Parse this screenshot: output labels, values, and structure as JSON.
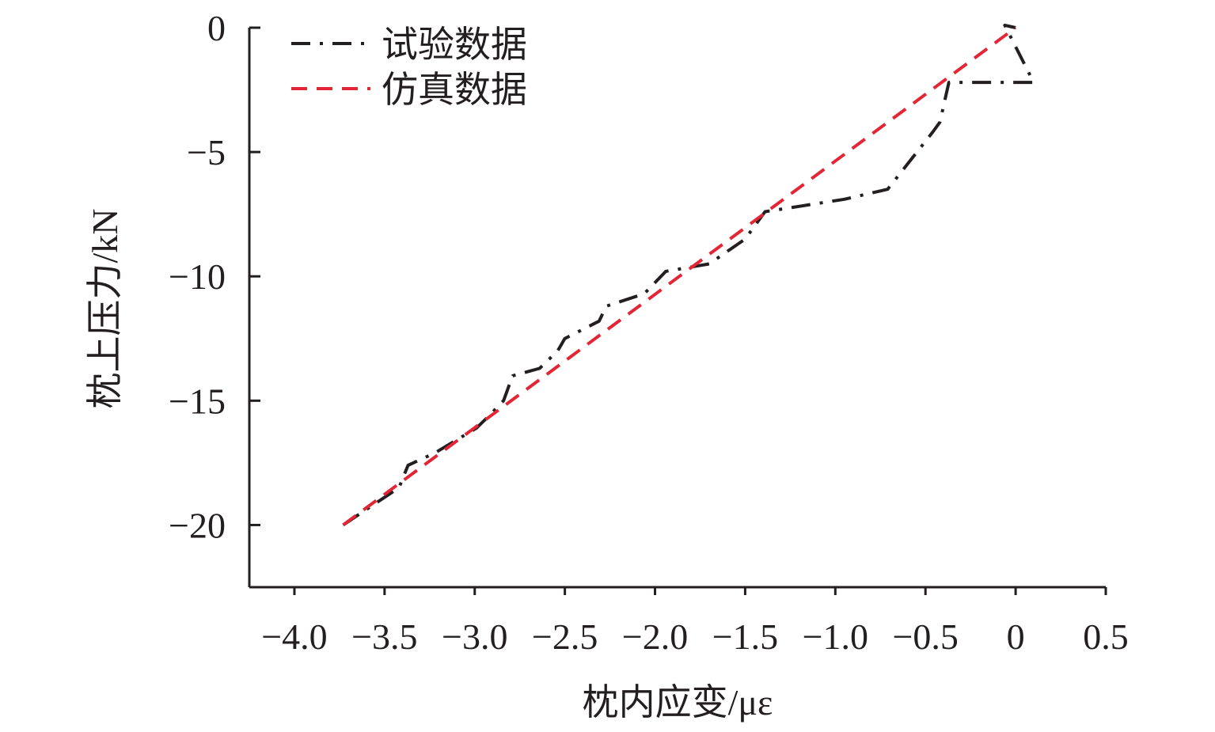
{
  "chart_data": {
    "type": "line",
    "title": "",
    "xlabel": "枕内应变/με",
    "ylabel": "枕上压力/kN",
    "xlim": [
      -4.25,
      0.5
    ],
    "ylim": [
      -22.5,
      0
    ],
    "xticks": [
      -4.0,
      -3.5,
      -3.0,
      -2.5,
      -2.0,
      -1.5,
      -1.0,
      -0.5,
      0,
      0.5
    ],
    "xtick_labels": [
      "−4.0",
      "−3.5",
      "−3.0",
      "−2.5",
      "−2.0",
      "−1.5",
      "−1.0",
      "−0.5",
      "0",
      "0.5"
    ],
    "yticks": [
      0,
      -5,
      -10,
      -15,
      -20
    ],
    "ytick_labels": [
      "0",
      "−5",
      "−10",
      "−15",
      "−20"
    ],
    "grid": false,
    "legend": {
      "position": "top-left",
      "entries": [
        "试验数据",
        "仿真数据"
      ]
    },
    "series": [
      {
        "name": "试验数据",
        "color": "#231f20",
        "style": "dash-dot",
        "x": [
          -3.73,
          -3.42,
          -3.37,
          -3.22,
          -2.99,
          -2.92,
          -2.84,
          -2.79,
          -2.64,
          -2.54,
          -2.5,
          -2.31,
          -2.27,
          -2.06,
          -1.94,
          -1.7,
          -1.5,
          -1.39,
          -0.95,
          -0.71,
          -0.46,
          -0.42,
          -0.37,
          0.1,
          -0.06,
          0.0
        ],
        "y": [
          -20.0,
          -18.5,
          -17.6,
          -17.1,
          -16.1,
          -15.6,
          -15.0,
          -14.0,
          -13.7,
          -13.0,
          -12.5,
          -11.8,
          -11.2,
          -10.7,
          -9.8,
          -9.5,
          -8.5,
          -7.4,
          -6.9,
          -6.5,
          -4.2,
          -3.8,
          -2.2,
          -2.2,
          0.1,
          0.0
        ]
      },
      {
        "name": "仿真数据",
        "color": "#e32636",
        "style": "dashed",
        "x": [
          -3.73,
          0.0
        ],
        "y": [
          -20.0,
          0.0
        ]
      }
    ]
  }
}
